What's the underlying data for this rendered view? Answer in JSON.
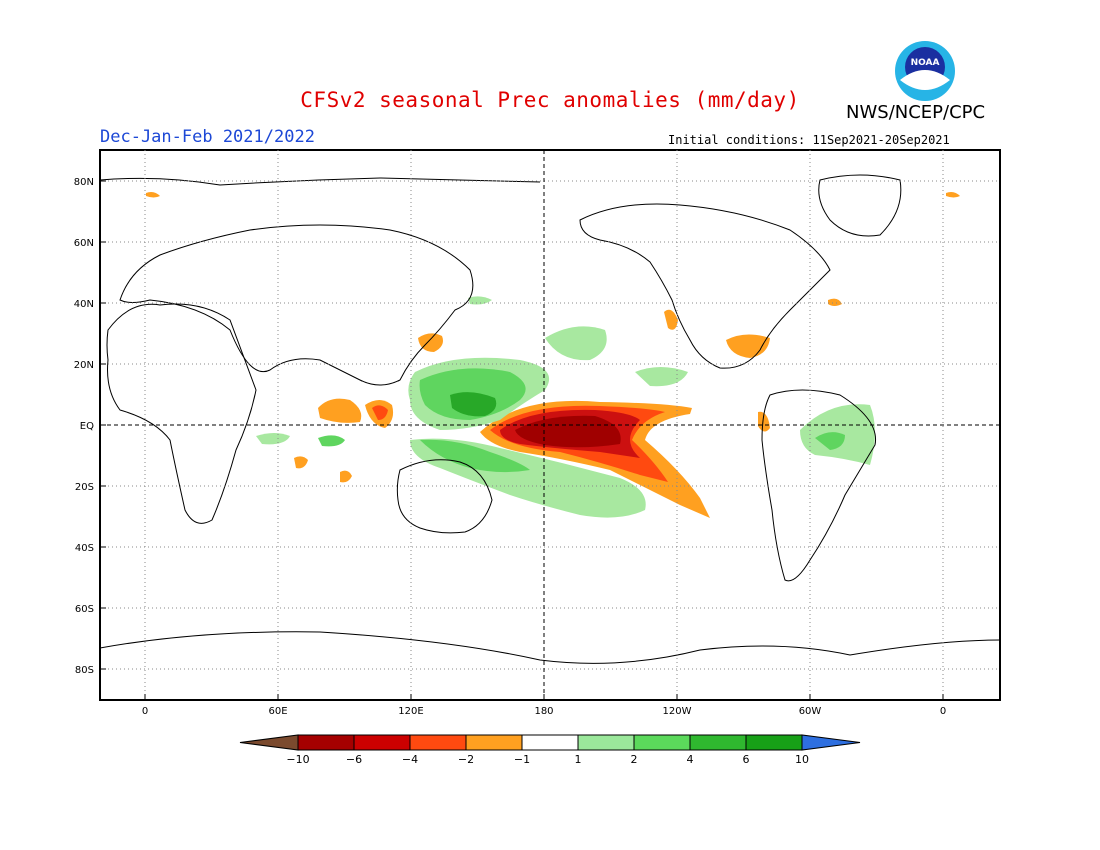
{
  "header": {
    "title": "CFSv2 seasonal Prec anomalies (mm/day)",
    "org": "NWS/NCEP/CPC",
    "logo_text": "NOAA",
    "season": "Dec-Jan-Feb 2021/2022",
    "initial_conditions": "Initial conditions: 11Sep2021-20Sep2021"
  },
  "axes": {
    "lat_labels": [
      "80N",
      "60N",
      "40N",
      "20N",
      "EQ",
      "20S",
      "40S",
      "60S",
      "80S"
    ],
    "lon_labels": [
      "0",
      "60E",
      "120E",
      "180",
      "120W",
      "60W",
      "0"
    ]
  },
  "colorbar": {
    "ticks": [
      "-10",
      "-6",
      "-4",
      "-2",
      "-1",
      "1",
      "2",
      "4",
      "6",
      "10"
    ],
    "colors": [
      "#7b4a2e",
      "#a50000",
      "#cc0000",
      "#ff4a10",
      "#ffa020",
      "#ffffff",
      "#9be89b",
      "#5bd95b",
      "#2fb82f",
      "#17a017",
      "#2e6fe0"
    ]
  },
  "colors": {
    "green_light": "#a8e8a0",
    "green": "#5fd55f",
    "green_dark": "#28a828",
    "orange": "#ffa020",
    "red_orange": "#ff4a10",
    "red": "#cc1010",
    "dark_red": "#a00000"
  }
}
